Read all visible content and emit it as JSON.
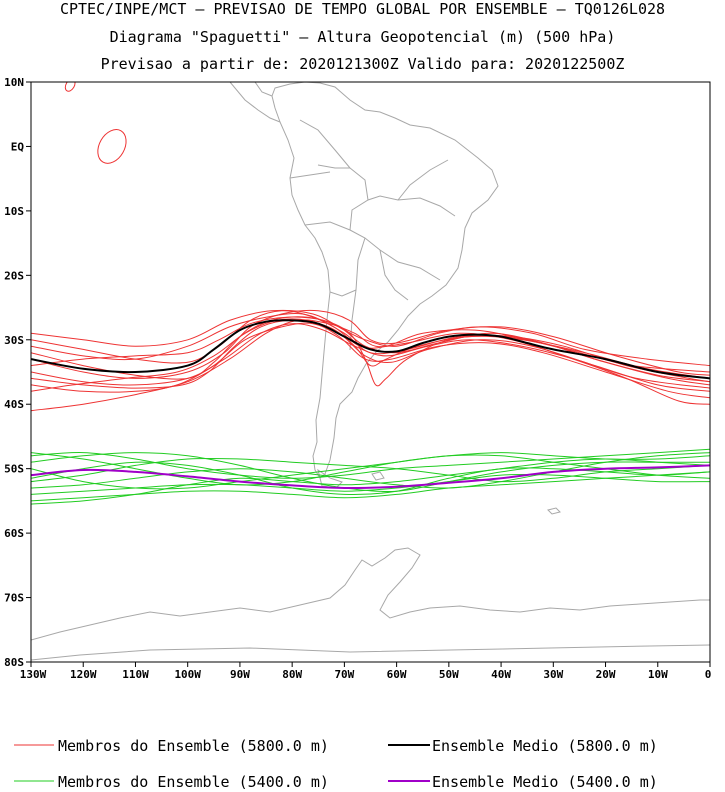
{
  "header": {
    "line1": "CPTEC/INPE/MCT — PREVISAO DE TEMPO GLOBAL POR ENSEMBLE — TQ0126L028",
    "line2": "Diagrama \"Spaguetti\" — Altura Geopotencial (m) (500 hPa)",
    "line3": "Previsao a partir de: 2020121300Z  Valido para: 2020122500Z"
  },
  "axes": {
    "lat_labels": [
      "10N",
      "EQ",
      "10S",
      "20S",
      "30S",
      "40S",
      "50S",
      "60S",
      "70S",
      "80S"
    ],
    "lon_labels": [
      "130W",
      "120W",
      "110W",
      "100W",
      "90W",
      "80W",
      "70W",
      "60W",
      "50W",
      "40W",
      "30W",
      "20W",
      "10W",
      "0"
    ]
  },
  "legend": {
    "members_5800": "Membros do Ensemble (5800.0 m)",
    "mean_5800": "Ensemble Medio (5800.0 m)",
    "members_5400": "Membros do Ensemble (5400.0 m)",
    "mean_5400": "Ensemble Medio (5400.0 m)"
  },
  "colors": {
    "members_5800": "#ee3333",
    "mean_5800": "#000000",
    "members_5400": "#22cc22",
    "mean_5400": "#a000c8",
    "coastline": "#a8a8a8"
  },
  "map_data": {
    "region": {
      "lon": [
        -130,
        0
      ],
      "lat": [
        -80,
        10
      ]
    },
    "contour_5800_mean": [
      [
        -130,
        -33
      ],
      [
        -120,
        -34.5
      ],
      [
        -110,
        -35
      ],
      [
        -100,
        -34
      ],
      [
        -95,
        -31.5
      ],
      [
        -90,
        -28.5
      ],
      [
        -85,
        -27.2
      ],
      [
        -80,
        -27
      ],
      [
        -75,
        -27.5
      ],
      [
        -70,
        -29.5
      ],
      [
        -65,
        -31.5
      ],
      [
        -60,
        -31.8
      ],
      [
        -55,
        -30.5
      ],
      [
        -50,
        -29.5
      ],
      [
        -45,
        -29.2
      ],
      [
        -40,
        -29.5
      ],
      [
        -35,
        -30.5
      ],
      [
        -30,
        -31.5
      ],
      [
        -20,
        -33
      ],
      [
        -10,
        -35
      ],
      [
        0,
        -36
      ]
    ],
    "contour_5400_mean": [
      [
        -130,
        -51
      ],
      [
        -120,
        -50.2
      ],
      [
        -110,
        -50.5
      ],
      [
        -100,
        -51.2
      ],
      [
        -90,
        -52
      ],
      [
        -80,
        -52.6
      ],
      [
        -70,
        -53
      ],
      [
        -60,
        -52.8
      ],
      [
        -50,
        -52.2
      ],
      [
        -40,
        -51.5
      ],
      [
        -30,
        -50.5
      ],
      [
        -20,
        -50
      ],
      [
        -10,
        -49.8
      ],
      [
        0,
        -49.5
      ]
    ],
    "members_5800": [
      [
        [
          -130,
          -31
        ],
        [
          -120,
          -32.5
        ],
        [
          -110,
          -33
        ],
        [
          -100,
          -31
        ],
        [
          -92,
          -28
        ],
        [
          -85,
          -26.5
        ],
        [
          -78,
          -26
        ],
        [
          -72,
          -28
        ],
        [
          -67,
          -31
        ],
        [
          -62,
          -31
        ],
        [
          -55,
          -29
        ],
        [
          -45,
          -28.5
        ],
        [
          -35,
          -30
        ],
        [
          -25,
          -32
        ],
        [
          -15,
          -34
        ],
        [
          0,
          -35
        ]
      ],
      [
        [
          -130,
          -29
        ],
        [
          -120,
          -30
        ],
        [
          -110,
          -31
        ],
        [
          -100,
          -30
        ],
        [
          -92,
          -27
        ],
        [
          -84,
          -25.5
        ],
        [
          -76,
          -26
        ],
        [
          -70,
          -28.5
        ],
        [
          -66,
          -30
        ],
        [
          -60,
          -31
        ],
        [
          -52,
          -29
        ],
        [
          -44,
          -28
        ],
        [
          -34,
          -29
        ],
        [
          -24,
          -31.5
        ],
        [
          -12,
          -33
        ],
        [
          0,
          -34
        ]
      ],
      [
        [
          -130,
          -35
        ],
        [
          -120,
          -36.5
        ],
        [
          -110,
          -37
        ],
        [
          -100,
          -36
        ],
        [
          -93,
          -33
        ],
        [
          -86,
          -29
        ],
        [
          -80,
          -27.5
        ],
        [
          -74,
          -28.5
        ],
        [
          -68,
          -31
        ],
        [
          -62,
          -32.5
        ],
        [
          -54,
          -31
        ],
        [
          -46,
          -30
        ],
        [
          -36,
          -31
        ],
        [
          -26,
          -33
        ],
        [
          -14,
          -36
        ],
        [
          0,
          -37.5
        ]
      ],
      [
        [
          -130,
          -37
        ],
        [
          -120,
          -38
        ],
        [
          -110,
          -38
        ],
        [
          -102,
          -37
        ],
        [
          -95,
          -34
        ],
        [
          -89,
          -30
        ],
        [
          -82,
          -28
        ],
        [
          -76,
          -27.5
        ],
        [
          -71,
          -29.5
        ],
        [
          -66,
          -33
        ],
        [
          -61,
          -33
        ],
        [
          -52,
          -31
        ],
        [
          -42,
          -30.5
        ],
        [
          -32,
          -32
        ],
        [
          -20,
          -35
        ],
        [
          -8,
          -38
        ],
        [
          0,
          -39
        ]
      ],
      [
        [
          -130,
          -41
        ],
        [
          -120,
          -40
        ],
        [
          -110,
          -38.5
        ],
        [
          -100,
          -36.5
        ],
        [
          -92,
          -33
        ],
        [
          -85,
          -29
        ],
        [
          -79,
          -27
        ],
        [
          -73,
          -27.5
        ],
        [
          -68,
          -29
        ],
        [
          -64,
          -31
        ],
        [
          -58,
          -30.5
        ],
        [
          -48,
          -29
        ],
        [
          -38,
          -30
        ],
        [
          -28,
          -32.5
        ],
        [
          -16,
          -36
        ],
        [
          -6,
          -39.5
        ],
        [
          0,
          -40
        ]
      ],
      [
        [
          -130,
          -33
        ],
        [
          -120,
          -35
        ],
        [
          -110,
          -36
        ],
        [
          -100,
          -35
        ],
        [
          -93,
          -32
        ],
        [
          -88,
          -28
        ],
        [
          -82,
          -26
        ],
        [
          -75,
          -25.5
        ],
        [
          -69,
          -27
        ],
        [
          -65,
          -30
        ],
        [
          -60,
          -30.5
        ],
        [
          -50,
          -28.5
        ],
        [
          -40,
          -28
        ],
        [
          -30,
          -29.5
        ],
        [
          -18,
          -32.5
        ],
        [
          -6,
          -35
        ],
        [
          0,
          -35.5
        ]
      ],
      [
        [
          -130,
          -34
        ],
        [
          -120,
          -33
        ],
        [
          -110,
          -32.5
        ],
        [
          -100,
          -32
        ],
        [
          -94,
          -30
        ],
        [
          -88,
          -27.5
        ],
        [
          -81,
          -26.5
        ],
        [
          -74,
          -27
        ],
        [
          -69,
          -29
        ],
        [
          -66,
          -33
        ],
        [
          -64,
          -37
        ],
        [
          -62,
          -36
        ],
        [
          -58,
          -33
        ],
        [
          -50,
          -30
        ],
        [
          -40,
          -29.5
        ],
        [
          -30,
          -31
        ],
        [
          -20,
          -33.5
        ],
        [
          -8,
          -36
        ],
        [
          0,
          -37
        ]
      ],
      [
        [
          -130,
          -36
        ],
        [
          -120,
          -37
        ],
        [
          -110,
          -37.5
        ],
        [
          -101,
          -37
        ],
        [
          -96,
          -35
        ],
        [
          -91,
          -31
        ],
        [
          -86,
          -28
        ],
        [
          -80,
          -27
        ],
        [
          -73,
          -28
        ],
        [
          -68,
          -31
        ],
        [
          -65,
          -34
        ],
        [
          -62,
          -33
        ],
        [
          -56,
          -31
        ],
        [
          -46,
          -29.5
        ],
        [
          -36,
          -30
        ],
        [
          -24,
          -32
        ],
        [
          -12,
          -34.5
        ],
        [
          0,
          -36
        ]
      ],
      [
        [
          -130,
          -32
        ],
        [
          -120,
          -34
        ],
        [
          -110,
          -35.5
        ],
        [
          -100,
          -36
        ],
        [
          -95,
          -33.5
        ],
        [
          -90,
          -29.5
        ],
        [
          -84,
          -27
        ],
        [
          -77,
          -26.5
        ],
        [
          -71,
          -28
        ],
        [
          -66,
          -31
        ],
        [
          -60,
          -32
        ],
        [
          -52,
          -30.5
        ],
        [
          -42,
          -29
        ],
        [
          -32,
          -30.5
        ],
        [
          -22,
          -33
        ],
        [
          -10,
          -35.5
        ],
        [
          0,
          -36.5
        ]
      ],
      [
        [
          -130,
          -30
        ],
        [
          -120,
          -31.5
        ],
        [
          -110,
          -33
        ],
        [
          -100,
          -33.5
        ],
        [
          -94,
          -31
        ],
        [
          -88,
          -27
        ],
        [
          -82,
          -25.5
        ],
        [
          -76,
          -26.5
        ],
        [
          -70,
          -29
        ],
        [
          -65,
          -32
        ],
        [
          -58,
          -31.5
        ],
        [
          -48,
          -29.5
        ],
        [
          -38,
          -29.5
        ],
        [
          -28,
          -31
        ],
        [
          -16,
          -34
        ],
        [
          -4,
          -36
        ],
        [
          0,
          -36.5
        ]
      ],
      [
        [
          -130,
          -38
        ],
        [
          -122,
          -37
        ],
        [
          -112,
          -36
        ],
        [
          -102,
          -35
        ],
        [
          -95,
          -32.5
        ],
        [
          -89,
          -29
        ],
        [
          -83,
          -27
        ],
        [
          -77,
          -27
        ],
        [
          -71,
          -29
        ],
        [
          -66,
          -32.5
        ],
        [
          -61,
          -33.5
        ],
        [
          -54,
          -31.5
        ],
        [
          -44,
          -30
        ],
        [
          -34,
          -31
        ],
        [
          -22,
          -34
        ],
        [
          -10,
          -37
        ],
        [
          0,
          -38
        ]
      ]
    ],
    "members_5400": [
      [
        [
          -130,
          -48
        ],
        [
          -120,
          -47.5
        ],
        [
          -110,
          -48.5
        ],
        [
          -100,
          -50
        ],
        [
          -90,
          -51
        ],
        [
          -80,
          -51.5
        ],
        [
          -70,
          -51
        ],
        [
          -60,
          -50
        ],
        [
          -50,
          -49.5
        ],
        [
          -40,
          -49
        ],
        [
          -30,
          -48.5
        ],
        [
          -20,
          -48
        ],
        [
          -10,
          -47.5
        ],
        [
          0,
          -47
        ]
      ],
      [
        [
          -130,
          -52
        ],
        [
          -120,
          -51
        ],
        [
          -110,
          -49.5
        ],
        [
          -100,
          -48.5
        ],
        [
          -90,
          -48.5
        ],
        [
          -80,
          -49
        ],
        [
          -70,
          -49.5
        ],
        [
          -60,
          -50
        ],
        [
          -50,
          -51
        ],
        [
          -40,
          -52
        ],
        [
          -30,
          -51.5
        ],
        [
          -20,
          -50.5
        ],
        [
          -10,
          -50
        ],
        [
          0,
          -49.5
        ]
      ],
      [
        [
          -130,
          -55
        ],
        [
          -120,
          -54.5
        ],
        [
          -110,
          -54
        ],
        [
          -100,
          -53.5
        ],
        [
          -90,
          -53.5
        ],
        [
          -80,
          -54
        ],
        [
          -70,
          -54.5
        ],
        [
          -60,
          -54
        ],
        [
          -50,
          -53
        ],
        [
          -40,
          -52.5
        ],
        [
          -30,
          -52
        ],
        [
          -20,
          -51.5
        ],
        [
          -10,
          -51
        ],
        [
          0,
          -50.5
        ]
      ],
      [
        [
          -130,
          -50
        ],
        [
          -120,
          -52
        ],
        [
          -110,
          -53
        ],
        [
          -100,
          -53
        ],
        [
          -90,
          -52
        ],
        [
          -80,
          -51
        ],
        [
          -70,
          -50
        ],
        [
          -60,
          -49
        ],
        [
          -50,
          -48
        ],
        [
          -40,
          -48
        ],
        [
          -30,
          -49
        ],
        [
          -20,
          -50
        ],
        [
          -10,
          -51
        ],
        [
          0,
          -51.5
        ]
      ],
      [
        [
          -130,
          -53
        ],
        [
          -120,
          -52.5
        ],
        [
          -110,
          -51.5
        ],
        [
          -100,
          -50.5
        ],
        [
          -90,
          -50
        ],
        [
          -80,
          -50.5
        ],
        [
          -70,
          -51.5
        ],
        [
          -60,
          -52.5
        ],
        [
          -50,
          -53
        ],
        [
          -40,
          -52
        ],
        [
          -30,
          -50.5
        ],
        [
          -20,
          -49
        ],
        [
          -10,
          -48
        ],
        [
          0,
          -47.5
        ]
      ],
      [
        [
          -130,
          -49
        ],
        [
          -120,
          -48
        ],
        [
          -110,
          -47.5
        ],
        [
          -100,
          -48
        ],
        [
          -90,
          -49.5
        ],
        [
          -80,
          -51.5
        ],
        [
          -70,
          -53
        ],
        [
          -60,
          -53.5
        ],
        [
          -50,
          -52
        ],
        [
          -40,
          -50.5
        ],
        [
          -30,
          -49.5
        ],
        [
          -20,
          -49
        ],
        [
          -10,
          -49
        ],
        [
          0,
          -49
        ]
      ],
      [
        [
          -130,
          -54
        ],
        [
          -120,
          -53.5
        ],
        [
          -110,
          -53
        ],
        [
          -100,
          -52.5
        ],
        [
          -90,
          -52.5
        ],
        [
          -80,
          -53
        ],
        [
          -70,
          -53.5
        ],
        [
          -60,
          -53
        ],
        [
          -50,
          -52
        ],
        [
          -40,
          -51
        ],
        [
          -30,
          -51
        ],
        [
          -20,
          -51.5
        ],
        [
          -10,
          -52
        ],
        [
          0,
          -52
        ]
      ],
      [
        [
          -130,
          -47.5
        ],
        [
          -120,
          -48.5
        ],
        [
          -110,
          -50
        ],
        [
          -100,
          -51.5
        ],
        [
          -90,
          -52.5
        ],
        [
          -80,
          -52
        ],
        [
          -70,
          -50.5
        ],
        [
          -60,
          -49
        ],
        [
          -50,
          -48
        ],
        [
          -40,
          -47.5
        ],
        [
          -30,
          -48
        ],
        [
          -20,
          -48.5
        ],
        [
          -10,
          -48.5
        ],
        [
          0,
          -48
        ]
      ],
      [
        [
          -130,
          -51.5
        ],
        [
          -120,
          -50
        ],
        [
          -110,
          -49
        ],
        [
          -100,
          -49.5
        ],
        [
          -90,
          -51
        ],
        [
          -80,
          -53
        ],
        [
          -70,
          -54
        ],
        [
          -60,
          -53.5
        ],
        [
          -50,
          -51.5
        ],
        [
          -40,
          -50
        ],
        [
          -30,
          -50
        ],
        [
          -20,
          -50.5
        ],
        [
          -10,
          -51
        ],
        [
          0,
          -50.5
        ]
      ],
      [
        [
          -130,
          -55.5
        ],
        [
          -120,
          -55
        ],
        [
          -110,
          -54
        ],
        [
          -100,
          -52.5
        ],
        [
          -90,
          -51.5
        ],
        [
          -80,
          -52
        ],
        [
          -70,
          -52.5
        ],
        [
          -60,
          -52
        ],
        [
          -50,
          -51
        ],
        [
          -40,
          -50
        ],
        [
          -30,
          -49
        ],
        [
          -20,
          -48.5
        ],
        [
          -10,
          -49
        ],
        [
          0,
          -49.5
        ]
      ]
    ],
    "small_contours_5800": [
      {
        "lon": -114.5,
        "lat": 0,
        "rx": 2.4,
        "ry": 2.8
      },
      {
        "lon": -122.5,
        "lat": 9.5,
        "rx": 0.8,
        "ry": 1.0
      }
    ]
  }
}
